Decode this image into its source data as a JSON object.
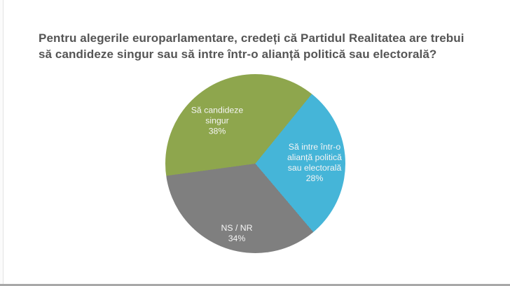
{
  "question": {
    "line1": "Pentru alegerile europarlamentare, credeți că Partidul Realitatea are trebui",
    "line2": "să candideze singur sau să intre într-o alianță politică sau electorală?"
  },
  "chart_data": {
    "type": "pie",
    "title": "Pentru alegerile europarlamentare, credeți că Partidul Realitatea are trebui să candideze singur sau să intre într-o alianță politică sau electorală?",
    "direction": "clockwise",
    "start_angle_deg": 39,
    "legend_position": "none",
    "labels_on_slices": true,
    "slices": [
      {
        "name": "Să intre într-o alianță politică sau electorală",
        "value": 28,
        "color": "#45b5d8"
      },
      {
        "name": "NS / NR",
        "value": 34,
        "color": "#7f7f7f"
      },
      {
        "name": "Să candideze singur",
        "value": 38,
        "color": "#8ea64d"
      }
    ]
  },
  "slice_labels": {
    "singur": {
      "lines": [
        "Să candideze",
        "singur",
        "38%"
      ]
    },
    "alianta": {
      "lines": [
        "Să intre într-o",
        "alianță politică",
        "sau electorală",
        "28%"
      ]
    },
    "nsnr": {
      "lines": [
        "NS / NR",
        "34%"
      ]
    }
  },
  "colors": {
    "title_text": "#555555",
    "slice_label_text": "#f5f5f5",
    "background": "#ffffff"
  }
}
